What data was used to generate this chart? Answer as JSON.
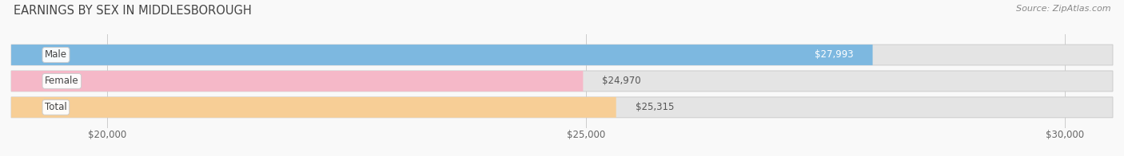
{
  "title": "EARNINGS BY SEX IN MIDDLESBOROUGH",
  "source": "Source: ZipAtlas.com",
  "categories": [
    "Male",
    "Female",
    "Total"
  ],
  "values": [
    27993,
    24970,
    25315
  ],
  "bar_colors": [
    "#7db8e0",
    "#f5b8c8",
    "#f7ce96"
  ],
  "bar_bg_color": "#e4e4e4",
  "xmin": 19000,
  "xmax": 30500,
  "xticks": [
    20000,
    25000,
    30000
  ],
  "xtick_labels": [
    "$20,000",
    "$25,000",
    "$30,000"
  ],
  "background_color": "#f9f9f9",
  "title_color": "#444444",
  "title_fontsize": 10.5,
  "tick_fontsize": 8.5,
  "value_fontsize": 8.5,
  "cat_fontsize": 8.5,
  "source_fontsize": 8,
  "bar_height": 0.32,
  "bar_gap": 0.12,
  "male_label_color": "#ffffff",
  "other_label_color": "#555555"
}
